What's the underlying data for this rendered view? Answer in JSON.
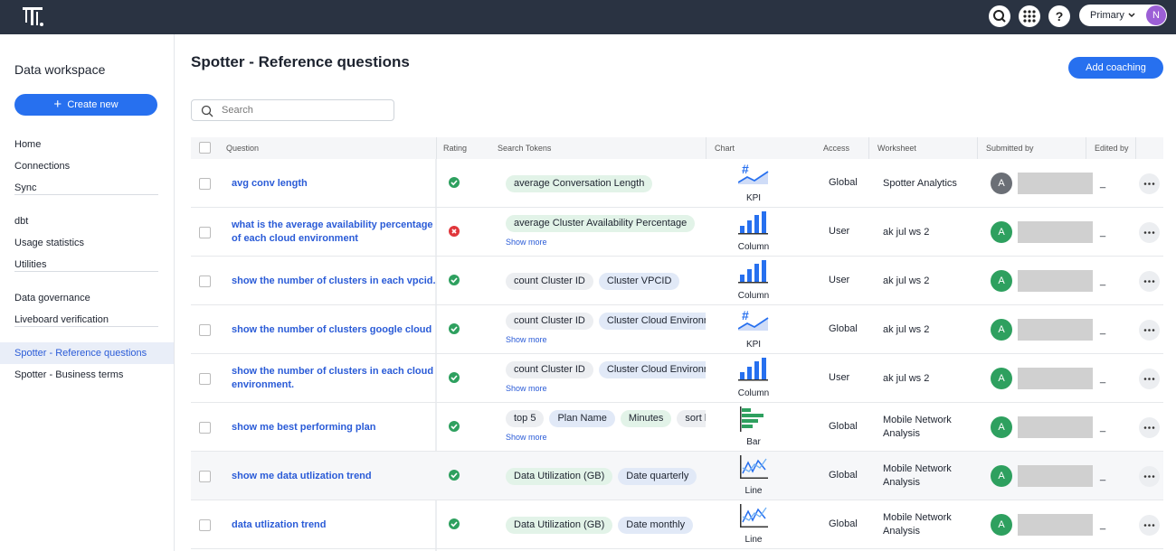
{
  "topbar": {
    "account": "Primary",
    "avatar": "N"
  },
  "sidebar": {
    "title": "Data workspace",
    "create": "Create new",
    "groups": [
      [
        "Home",
        "Connections",
        "Sync"
      ],
      [
        "dbt",
        "Usage statistics",
        "Utilities"
      ],
      [
        "Data governance",
        "Liveboard verification"
      ],
      [
        "Spotter - Reference questions",
        "Spotter - Business terms"
      ]
    ],
    "selected": "Spotter - Reference questions"
  },
  "header": {
    "title": "Spotter - Reference questions",
    "action": "Add coaching",
    "search": "Search"
  },
  "table": {
    "columns": [
      "Question",
      "Rating",
      "Search Tokens",
      "Chart",
      "Access",
      "Worksheet",
      "Submitted by",
      "Edited by"
    ],
    "rows": [
      {
        "question": "avg conv length",
        "positive": true,
        "tokens": [
          {
            "text": "average Conversation Length",
            "kind": "measure"
          }
        ],
        "chart": "KPI",
        "access": "Global",
        "worksheet": "Spotter Analytics",
        "initial": "A",
        "edited_by": "_"
      },
      {
        "question": "what is the average availability percentage of each cloud environment",
        "positive": false,
        "tokens": [
          {
            "text": "average Cluster Availability Percentage",
            "kind": "measure"
          }
        ],
        "show_more": "Show more",
        "chart": "Column",
        "access": "User",
        "worksheet": "ak jul ws 2",
        "initial": "A",
        "edited_by": "_"
      },
      {
        "question": "show the number of clusters in each vpcid.",
        "positive": true,
        "tokens": [
          {
            "text": "count Cluster ID",
            "kind": "keyword"
          },
          {
            "text": "Cluster VPCID",
            "kind": "attribute"
          }
        ],
        "chart": "Column",
        "access": "User",
        "worksheet": "ak jul ws 2",
        "initial": "A",
        "edited_by": "_"
      },
      {
        "question": "show the number of clusters google cloud",
        "positive": true,
        "tokens": [
          {
            "text": "count Cluster ID",
            "kind": "keyword"
          },
          {
            "text": "Cluster Cloud Environn",
            "kind": "attribute"
          }
        ],
        "show_more": "Show more",
        "chart": "KPI",
        "access": "Global",
        "worksheet": "ak jul ws 2",
        "initial": "A",
        "edited_by": "_"
      },
      {
        "question": "show the number of clusters in each cloud environment.",
        "positive": true,
        "tokens": [
          {
            "text": "count Cluster ID",
            "kind": "keyword"
          },
          {
            "text": "Cluster Cloud Environn",
            "kind": "attribute"
          }
        ],
        "show_more": "Show more",
        "chart": "Column",
        "access": "User",
        "worksheet": "ak jul ws 2",
        "initial": "A",
        "edited_by": "_"
      },
      {
        "question": "show me best performing plan",
        "positive": true,
        "tokens": [
          {
            "text": "top 5",
            "kind": "keyword"
          },
          {
            "text": "Plan Name",
            "kind": "attribute"
          },
          {
            "text": "Minutes",
            "kind": "measure"
          },
          {
            "text": "sort b",
            "kind": "keyword"
          }
        ],
        "show_more": "Show more",
        "chart": "Bar",
        "access": "Global",
        "worksheet": "Mobile Network Analysis",
        "initial": "A",
        "edited_by": "_"
      },
      {
        "question": "show me data utlization trend",
        "positive": true,
        "tokens": [
          {
            "text": "Data Utilization (GB)",
            "kind": "measure"
          },
          {
            "text": "Date quarterly",
            "kind": "attribute"
          }
        ],
        "chart": "Line",
        "access": "Global",
        "worksheet": "Mobile Network Analysis",
        "initial": "A",
        "edited_by": "_"
      },
      {
        "question": "data utlization trend",
        "positive": true,
        "tokens": [
          {
            "text": "Data Utilization (GB)",
            "kind": "measure"
          },
          {
            "text": "Date monthly",
            "kind": "attribute"
          }
        ],
        "chart": "Line",
        "access": "Global",
        "worksheet": "Mobile Network Analysis",
        "initial": "A",
        "edited_by": "_"
      }
    ]
  }
}
